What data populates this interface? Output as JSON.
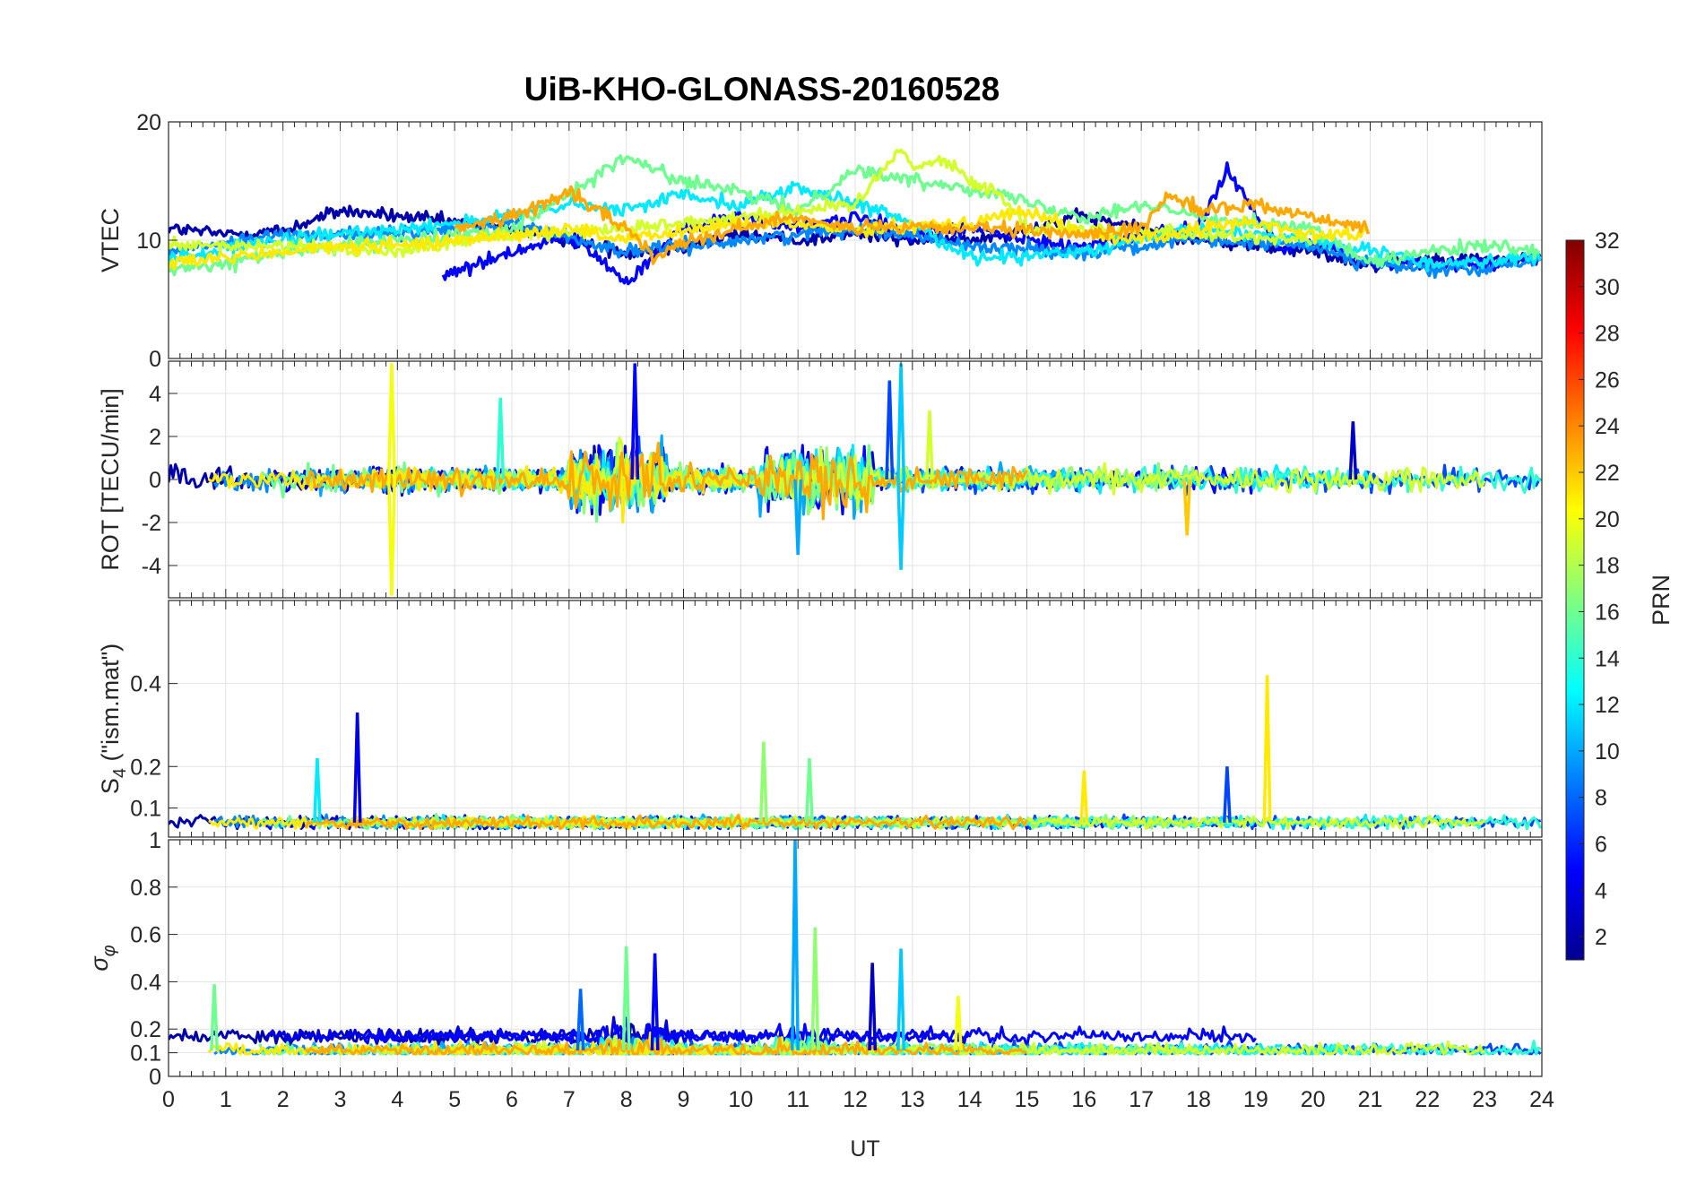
{
  "figure": {
    "title": "UiB-KHO-GLONASS-20160528",
    "xlabel": "UT",
    "colorbar_label": "PRN"
  },
  "colorbar": {
    "label": "PRN",
    "range": [
      1,
      32
    ],
    "ticks": [
      "2",
      "4",
      "6",
      "8",
      "10",
      "12",
      "14",
      "16",
      "18",
      "20",
      "22",
      "24",
      "26",
      "28",
      "30",
      "32"
    ],
    "colormap": "jet",
    "colors": [
      "#00008f",
      "#0000ff",
      "#00ffff",
      "#ffff00",
      "#ff0000",
      "#800000"
    ]
  },
  "chart_data": [
    {
      "type": "line",
      "ylabel": "VTEC",
      "xlim": [
        0,
        24
      ],
      "ylim": [
        0,
        20
      ],
      "yticks": [
        "0",
        "10",
        "20"
      ],
      "grid": true,
      "series": [
        {
          "prn": 2,
          "x": [
            0,
            1,
            2,
            3,
            4,
            5,
            6,
            7,
            8,
            9,
            10,
            11,
            12,
            13,
            14,
            15,
            16,
            17,
            18,
            19,
            20,
            21,
            22,
            23,
            24
          ],
          "y": [
            11,
            10.5,
            10.8,
            12.5,
            12,
            11.5,
            11,
            10,
            9,
            9.5,
            10.5,
            10,
            10.5,
            10,
            10,
            11,
            12,
            11,
            10,
            9.5,
            9,
            8,
            8.5,
            8.3,
            8.5
          ]
        },
        {
          "prn": 5,
          "x": [
            4.8,
            6,
            7,
            8,
            9,
            10,
            11,
            12,
            13,
            14,
            15,
            16,
            17,
            18,
            18.5,
            19,
            19.5,
            20,
            21,
            22,
            23,
            24
          ],
          "y": [
            7,
            9,
            10.5,
            6.5,
            11,
            12,
            11,
            12,
            10.5,
            11,
            10,
            9.5,
            10.5,
            11,
            16,
            12,
            9,
            10,
            8,
            8,
            8,
            8.5
          ]
        },
        {
          "prn": 9,
          "x": [
            0,
            2,
            4,
            6,
            8,
            10,
            12,
            13,
            14,
            16,
            18,
            20,
            21,
            22,
            23,
            24
          ],
          "y": [
            9,
            10.5,
            10.5,
            11.5,
            9,
            10,
            11,
            10.5,
            9.5,
            9,
            10,
            9.5,
            8,
            7.5,
            7.5,
            8.5
          ]
        },
        {
          "prn": 12,
          "x": [
            0,
            2,
            4,
            6,
            7,
            8,
            9,
            10,
            11,
            12,
            13,
            14,
            16,
            18,
            20,
            22,
            24
          ],
          "y": [
            8.5,
            10,
            11,
            12,
            13,
            12.5,
            14,
            13,
            14.5,
            13,
            11.5,
            8.5,
            9,
            11,
            10,
            8,
            8.5
          ]
        },
        {
          "prn": 16,
          "x": [
            0,
            1,
            2,
            4,
            6,
            7,
            8,
            9,
            10,
            11,
            12,
            13,
            14,
            16,
            17,
            18,
            20,
            21,
            22,
            23,
            24
          ],
          "y": [
            7.5,
            8,
            9,
            10,
            11,
            14,
            17,
            15,
            14,
            12.5,
            16,
            15,
            14.5,
            12,
            13,
            12,
            11,
            8,
            9,
            9.5,
            9
          ]
        },
        {
          "prn": 19,
          "x": [
            0,
            2,
            4,
            6,
            8,
            10,
            12,
            12.8,
            13,
            13.5,
            14,
            14.5,
            15,
            16,
            18,
            20
          ],
          "y": [
            9.5,
            9.5,
            9,
            10.5,
            11,
            12,
            13,
            18,
            16,
            17,
            15,
            14,
            11,
            11,
            10.5,
            10
          ]
        },
        {
          "prn": 21,
          "x": [
            0,
            2,
            3,
            4,
            5,
            6,
            7,
            8,
            10,
            12,
            14,
            15,
            16,
            17,
            18,
            19,
            20,
            21
          ],
          "y": [
            8,
            9,
            9.5,
            9.5,
            10,
            10.5,
            11,
            10,
            11.5,
            11,
            11.5,
            12.5,
            10.5,
            10,
            11,
            11.5,
            10.5,
            10.5
          ]
        },
        {
          "prn": 23,
          "x": [
            5,
            6,
            7,
            8,
            8.5,
            9,
            10,
            11,
            12,
            14,
            16,
            17,
            17.5,
            18,
            19,
            20,
            21
          ],
          "y": [
            11,
            12,
            14,
            11,
            8.5,
            10,
            11,
            12,
            11,
            11,
            10.5,
            11,
            14,
            12.5,
            13,
            12,
            11
          ]
        }
      ]
    },
    {
      "type": "line",
      "ylabel": "ROT [TECU/min]",
      "xlim": [
        0,
        24
      ],
      "ylim": [
        -5.5,
        5.5
      ],
      "yticks": [
        "-4",
        "-2",
        "0",
        "2",
        "4"
      ],
      "grid": true,
      "spikes": [
        {
          "x": 3.9,
          "y": 5.4,
          "prn": 20
        },
        {
          "x": 3.9,
          "y": -5.4,
          "prn": 20
        },
        {
          "x": 5.8,
          "y": 3.8,
          "prn": 14
        },
        {
          "x": 8.15,
          "y": 5.4,
          "prn": 5
        },
        {
          "x": 11.0,
          "y": -3.5,
          "prn": 10
        },
        {
          "x": 12.6,
          "y": 4.6,
          "prn": 7
        },
        {
          "x": 12.8,
          "y": 5.4,
          "prn": 11
        },
        {
          "x": 12.8,
          "y": -4.2,
          "prn": 11
        },
        {
          "x": 13.3,
          "y": 3.2,
          "prn": 19
        },
        {
          "x": 17.8,
          "y": -2.6,
          "prn": 22
        },
        {
          "x": 20.7,
          "y": 2.7,
          "prn": 3
        }
      ]
    },
    {
      "type": "line",
      "ylabel": "S4 (\"ism.mat\")",
      "xlim": [
        0,
        24
      ],
      "ylim": [
        0.03,
        0.6
      ],
      "yticks": [
        "0.1",
        "0.2",
        "0.4"
      ],
      "grid": true,
      "spikes": [
        {
          "x": 3.3,
          "y": 0.33,
          "prn": 4
        },
        {
          "x": 2.6,
          "y": 0.22,
          "prn": 12
        },
        {
          "x": 10.4,
          "y": 0.26,
          "prn": 17
        },
        {
          "x": 11.2,
          "y": 0.22,
          "prn": 16
        },
        {
          "x": 16.0,
          "y": 0.19,
          "prn": 21
        },
        {
          "x": 18.5,
          "y": 0.2,
          "prn": 7
        },
        {
          "x": 19.2,
          "y": 0.42,
          "prn": 21
        }
      ]
    },
    {
      "type": "line",
      "ylabel": "σφ",
      "xlabel": "UT",
      "xlim": [
        0,
        24
      ],
      "ylim": [
        0,
        1
      ],
      "yticks": [
        "0",
        "0.1",
        "0.2",
        "0.4",
        "0.6",
        "0.8",
        "1"
      ],
      "xticks": [
        "0",
        "1",
        "2",
        "3",
        "4",
        "5",
        "6",
        "7",
        "8",
        "9",
        "10",
        "11",
        "12",
        "13",
        "14",
        "15",
        "16",
        "17",
        "18",
        "19",
        "20",
        "21",
        "22",
        "23",
        "24"
      ],
      "grid": true,
      "spikes": [
        {
          "x": 0.8,
          "y": 0.39,
          "prn": 16
        },
        {
          "x": 7.2,
          "y": 0.37,
          "prn": 8
        },
        {
          "x": 8.0,
          "y": 0.55,
          "prn": 16
        },
        {
          "x": 8.5,
          "y": 0.52,
          "prn": 5
        },
        {
          "x": 10.95,
          "y": 1.0,
          "prn": 10
        },
        {
          "x": 11.3,
          "y": 0.63,
          "prn": 17
        },
        {
          "x": 12.3,
          "y": 0.48,
          "prn": 3
        },
        {
          "x": 12.8,
          "y": 0.54,
          "prn": 11
        },
        {
          "x": 13.8,
          "y": 0.34,
          "prn": 20
        }
      ]
    }
  ]
}
